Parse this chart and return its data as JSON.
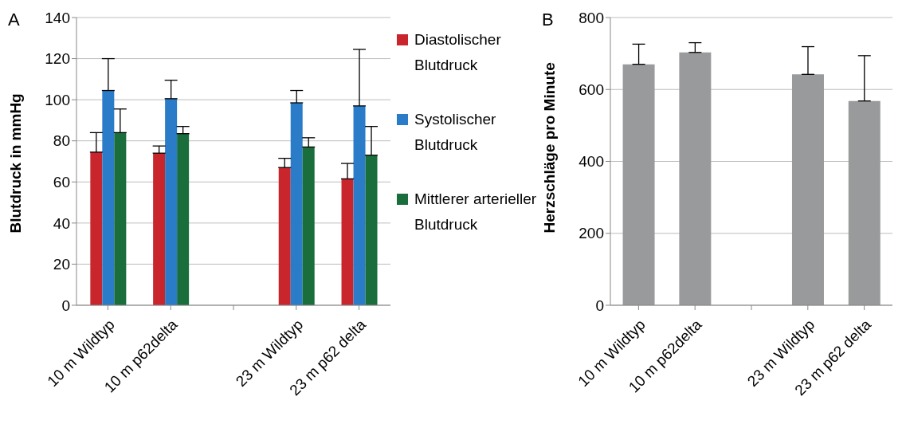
{
  "chart_data": [
    {
      "type": "bar",
      "annotations": [
        "A"
      ],
      "ylabel": "Blutdruck in mmHg",
      "categories": [
        "10 m Wildtyp",
        "10 m p62delta",
        null,
        "23 m Wildtyp",
        "23 m p62 delta"
      ],
      "ylim": [
        0,
        140
      ],
      "yticks": [
        0,
        20,
        40,
        60,
        80,
        100,
        120,
        140
      ],
      "grid": "y",
      "legend": "right",
      "series": [
        {
          "name": "Diastolischer Blutdruck",
          "color": "#c9252c",
          "values": [
            74.5,
            74,
            null,
            67,
            61.5
          ],
          "errors": [
            [
              74.5,
              84
            ],
            [
              74,
              77.5
            ],
            null,
            [
              67,
              71.5
            ],
            [
              61.5,
              69
            ]
          ]
        },
        {
          "name": "Systolischer Blutdruck",
          "color": "#2a7bc8",
          "values": [
            104.5,
            100.5,
            null,
            98.5,
            97
          ],
          "errors": [
            [
              104.5,
              120
            ],
            [
              100.5,
              109.5
            ],
            null,
            [
              98.5,
              104.5
            ],
            [
              97,
              124.5
            ]
          ]
        },
        {
          "name": "Mittlerer arterieller Blutdruck",
          "color": "#1a6e3c",
          "values": [
            84,
            83.5,
            null,
            77,
            73
          ],
          "errors": [
            [
              84,
              95.5
            ],
            [
              83.5,
              87
            ],
            null,
            [
              77,
              81.5
            ],
            [
              73,
              87
            ]
          ]
        }
      ]
    },
    {
      "type": "bar",
      "annotations": [
        "B"
      ],
      "ylabel": "Herzschläge pro Minute",
      "categories": [
        "10 m Wildtyp",
        "10 m p62delta",
        null,
        "23 m Wildtyp",
        "23 m p62 delta"
      ],
      "ylim": [
        0,
        800
      ],
      "yticks": [
        0,
        200,
        400,
        600,
        800
      ],
      "grid": "y",
      "legend": false,
      "series": [
        {
          "color": "#999a9c",
          "values": [
            670,
            703,
            null,
            642,
            568
          ],
          "errors": [
            [
              670,
              726
            ],
            [
              703,
              730
            ],
            null,
            [
              642,
              719
            ],
            [
              568,
              694
            ]
          ]
        }
      ]
    }
  ]
}
